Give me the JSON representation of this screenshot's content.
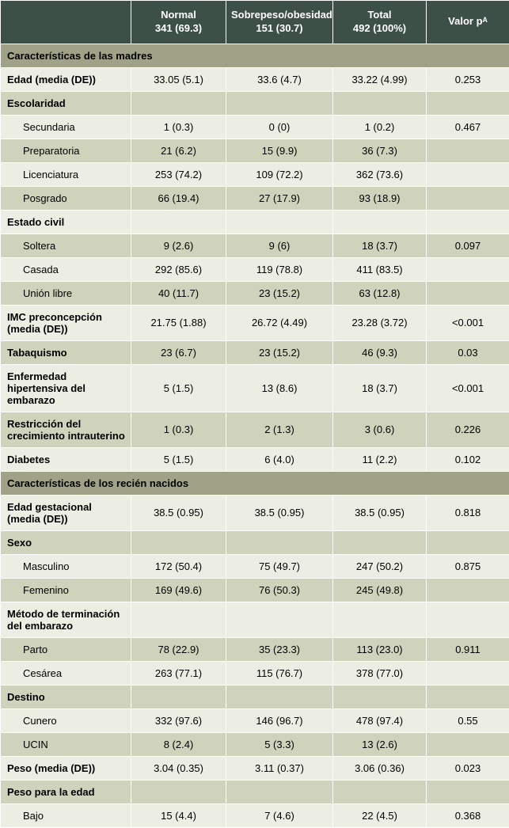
{
  "columns": {
    "col1": {
      "line1": "Normal",
      "line2": "341 (69.3)"
    },
    "col2": {
      "line1": "Sobrepeso/obesidad",
      "line2": "151 (30.7)"
    },
    "col3": {
      "line1": "Total",
      "line2": "492 (100%)"
    },
    "col4": {
      "line1": "Valor pᴬ"
    }
  },
  "sections": [
    {
      "title": "Características de las madres",
      "rows": [
        {
          "label": "Edad (media (DE))",
          "v1": "33.05 (5.1)",
          "v2": "33.6 (4.7)",
          "v3": "33.22 (4.99)",
          "p": "0.253",
          "bold": true
        },
        {
          "label": "Escolaridad",
          "v1": "",
          "v2": "",
          "v3": "",
          "p": "",
          "bold": true
        },
        {
          "label": "Secundaria",
          "v1": "1 (0.3)",
          "v2": "0 (0)",
          "v3": "1 (0.2)",
          "p": "0.467",
          "indent": true
        },
        {
          "label": "Preparatoria",
          "v1": "21 (6.2)",
          "v2": "15 (9.9)",
          "v3": "36 (7.3)",
          "p": "",
          "indent": true
        },
        {
          "label": "Licenciatura",
          "v1": "253 (74.2)",
          "v2": "109 (72.2)",
          "v3": "362 (73.6)",
          "p": "",
          "indent": true
        },
        {
          "label": "Posgrado",
          "v1": "66 (19.4)",
          "v2": "27 (17.9)",
          "v3": "93 (18.9)",
          "p": "",
          "indent": true
        },
        {
          "label": "Estado civil",
          "v1": "",
          "v2": "",
          "v3": "",
          "p": "",
          "bold": true
        },
        {
          "label": "Soltera",
          "v1": "9 (2.6)",
          "v2": "9 (6)",
          "v3": "18 (3.7)",
          "p": "0.097",
          "indent": true
        },
        {
          "label": "Casada",
          "v1": "292 (85.6)",
          "v2": "119 (78.8)",
          "v3": "411 (83.5)",
          "p": "",
          "indent": true
        },
        {
          "label": "Unión libre",
          "v1": "40 (11.7)",
          "v2": "23 (15.2)",
          "v3": "63 (12.8)",
          "p": "",
          "indent": true
        },
        {
          "label": "IMC preconcepción (media (DE))",
          "v1": "21.75 (1.88)",
          "v2": "26.72 (4.49)",
          "v3": "23.28 (3.72)",
          "p": "<0.001",
          "bold": true
        },
        {
          "label": "Tabaquismo",
          "v1": "23 (6.7)",
          "v2": "23 (15.2)",
          "v3": "46 (9.3)",
          "p": "0.03",
          "bold": true
        },
        {
          "label": "Enfermedad hipertensiva del embarazo",
          "v1": "5 (1.5)",
          "v2": "13 (8.6)",
          "v3": "18 (3.7)",
          "p": "<0.001",
          "bold": true
        },
        {
          "label": "Restricción del crecimiento intrauterino",
          "v1": "1 (0.3)",
          "v2": "2 (1.3)",
          "v3": "3 (0.6)",
          "p": "0.226",
          "bold": true
        },
        {
          "label": "Diabetes",
          "v1": "5 (1.5)",
          "v2": "6 (4.0)",
          "v3": "11 (2.2)",
          "p": "0.102",
          "bold": true
        }
      ]
    },
    {
      "title": "Características de los recién nacidos",
      "rows": [
        {
          "label": "Edad gestacional (media (DE))",
          "v1": "38.5 (0.95)",
          "v2": "38.5 (0.95)",
          "v3": "38.5 (0.95)",
          "p": "0.818",
          "bold": true
        },
        {
          "label": "Sexo",
          "v1": "",
          "v2": "",
          "v3": "",
          "p": "",
          "bold": true
        },
        {
          "label": "Masculino",
          "v1": "172 (50.4)",
          "v2": "75 (49.7)",
          "v3": "247 (50.2)",
          "p": "0.875",
          "indent": true
        },
        {
          "label": "Femenino",
          "v1": "169 (49.6)",
          "v2": "76 (50.3)",
          "v3": "245 (49.8)",
          "p": "",
          "indent": true
        },
        {
          "label": "Método de terminación del embarazo",
          "v1": "",
          "v2": "",
          "v3": "",
          "p": "",
          "bold": true
        },
        {
          "label": "Parto",
          "v1": "78 (22.9)",
          "v2": "35 (23.3)",
          "v3": "113 (23.0)",
          "p": "0.911",
          "indent": true
        },
        {
          "label": "Cesárea",
          "v1": "263 (77.1)",
          "v2": "115 (76.7)",
          "v3": "378 (77.0)",
          "p": "",
          "indent": true
        },
        {
          "label": "Destino",
          "v1": "",
          "v2": "",
          "v3": "",
          "p": "",
          "bold": true
        },
        {
          "label": "Cunero",
          "v1": "332 (97.6)",
          "v2": "146 (96.7)",
          "v3": "478 (97.4)",
          "p": "0.55",
          "indent": true
        },
        {
          "label": "UCIN",
          "v1": "8 (2.4)",
          "v2": "5 (3.3)",
          "v3": "13 (2.6)",
          "p": "",
          "indent": true
        },
        {
          "label": "Peso (media (DE))",
          "v1": "3.04 (0.35)",
          "v2": "3.11 (0.37)",
          "v3": "3.06 (0.36)",
          "p": "0.023",
          "bold": true
        },
        {
          "label": "Peso para la edad",
          "v1": "",
          "v2": "",
          "v3": "",
          "p": "",
          "bold": true
        },
        {
          "label": "Bajo",
          "v1": "15 (4.4)",
          "v2": "7 (4.6)",
          "v3": "22 (4.5)",
          "p": "0.368",
          "indent": true
        }
      ]
    }
  ]
}
